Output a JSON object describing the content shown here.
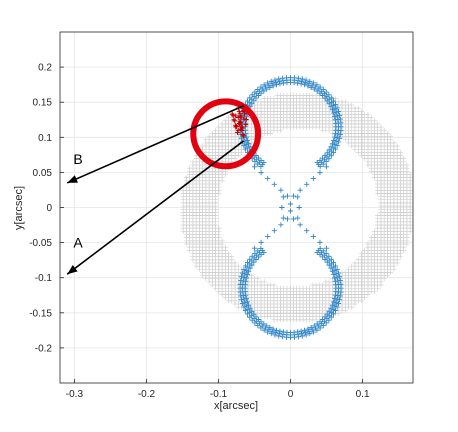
{
  "chart_data": {
    "type": "scatter",
    "title": "",
    "xlabel": "x[arcsec]",
    "ylabel": "y[arcsec]",
    "xlim": [
      -0.32,
      0.17
    ],
    "ylim": [
      -0.25,
      0.25
    ],
    "xticks": [
      -0.3,
      -0.2,
      -0.1,
      0,
      0.1
    ],
    "yticks": [
      -0.2,
      -0.15,
      -0.1,
      -0.05,
      0,
      0.05,
      0.1,
      0.15,
      0.2
    ],
    "grid": true,
    "series": [
      {
        "marker": "+",
        "color": "#c8c8c8",
        "shape": "ellipse_ring",
        "center": [
          0.01,
          0.0
        ],
        "inner_radii": [
          0.11,
          0.115
        ],
        "outer_radii": [
          0.16,
          0.165
        ],
        "rotation_deg": -35
      },
      {
        "marker": "+",
        "color": "#2f86c8",
        "shape": "figure_eight_caustic",
        "lobe_center_y": 0.115,
        "lobe_radius": 0.065
      },
      {
        "marker": "+",
        "color": "#c00000",
        "shape": "cluster",
        "points": [
          [
            -0.07,
            0.14
          ],
          [
            -0.075,
            0.125
          ],
          [
            -0.07,
            0.11
          ],
          [
            -0.065,
            0.135
          ],
          [
            -0.068,
            0.118
          ]
        ]
      }
    ],
    "annotations": [
      {
        "text": "B",
        "from": [
          -0.065,
          0.145
        ],
        "to": [
          -0.31,
          0.035
        ],
        "label_at": [
          -0.295,
          0.062
        ]
      },
      {
        "text": "A",
        "from": [
          -0.065,
          0.095
        ],
        "to": [
          -0.31,
          -0.095
        ],
        "label_at": [
          -0.295,
          -0.057
        ]
      }
    ],
    "highlight_circle": {
      "center": [
        -0.09,
        0.105
      ],
      "radius_x": 0.045,
      "color": "#e3000f"
    }
  }
}
